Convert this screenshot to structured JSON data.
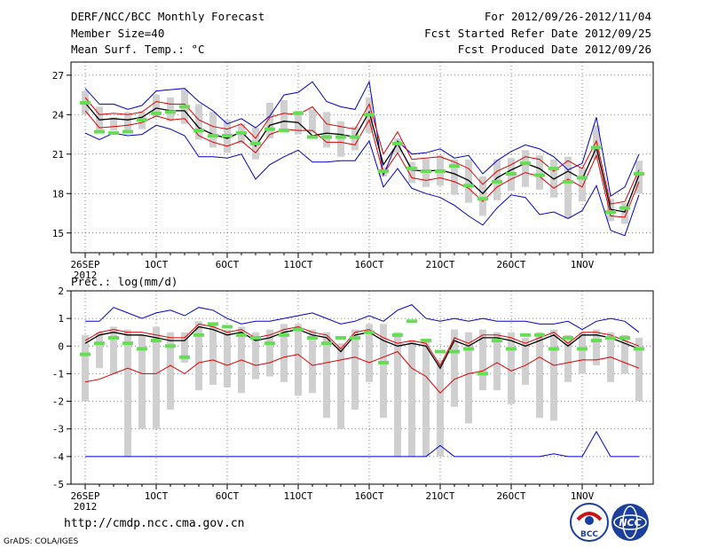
{
  "header": {
    "title": "DERF/NCC/BCC Monthly Forecast",
    "member": "Member Size=40",
    "variable": "Mean Surf. Temp.: °C",
    "period": "For 2012/09/26-2012/11/04",
    "started": "Fcst Started Refer Date 2012/09/25",
    "produced": "Fcst Produced Date 2012/09/26"
  },
  "footer": {
    "url": "http://cmdp.ncc.cma.gov.cn",
    "grads": "GrADS: COLA/IGES",
    "logo_bcc": "BCC",
    "logo_ncc": "NCC"
  },
  "colors": {
    "envelope": "#0000cc",
    "mean": "#000000",
    "spread": "#dd0000",
    "box": "#d0d0d0",
    "observed": "#66dd55"
  },
  "chart_data": [
    {
      "type": "line",
      "title": "Mean Surf. Temp.: °C",
      "x": [
        1,
        2,
        3,
        4,
        5,
        6,
        7,
        8,
        9,
        10,
        11,
        12,
        13,
        14,
        15,
        16,
        17,
        18,
        19,
        20,
        21,
        22,
        23,
        24,
        25,
        26,
        27,
        28,
        29,
        30,
        31,
        32,
        33,
        34,
        35,
        36,
        37,
        38,
        39,
        40
      ],
      "xticks": [
        1,
        6,
        11,
        16,
        21,
        26,
        31,
        36
      ],
      "xticklabels": [
        "26SEP",
        "1OCT",
        "6OCT",
        "11OCT",
        "16OCT",
        "21OCT",
        "26OCT",
        "1NOV"
      ],
      "xsublabel": "2012",
      "xlim": [
        0,
        41
      ],
      "ylim": [
        13.5,
        28
      ],
      "yticks": [
        15,
        18,
        21,
        24,
        27
      ],
      "series": [
        {
          "name": "max",
          "values": [
            26.0,
            24.8,
            24.8,
            24.4,
            24.7,
            25.8,
            25.9,
            26.0,
            25.0,
            24.3,
            23.3,
            23.7,
            23.0,
            23.9,
            25.5,
            25.7,
            26.5,
            25.0,
            24.6,
            24.4,
            26.5,
            19.4,
            22.0,
            21.0,
            21.1,
            21.4,
            20.7,
            20.9,
            19.5,
            20.5,
            21.2,
            21.7,
            21.4,
            20.8,
            19.8,
            20.3,
            23.8,
            17.8,
            18.5,
            21.0
          ]
        },
        {
          "name": "upper",
          "values": [
            25.3,
            24.0,
            24.1,
            24.0,
            24.2,
            25.0,
            24.8,
            24.8,
            23.6,
            23.1,
            22.9,
            23.3,
            22.2,
            23.8,
            24.1,
            24.0,
            24.6,
            23.3,
            23.1,
            22.9,
            24.8,
            21.0,
            22.7,
            20.6,
            20.7,
            20.8,
            20.4,
            19.9,
            18.7,
            19.7,
            20.2,
            20.8,
            20.6,
            19.7,
            20.5,
            19.9,
            22.0,
            17.2,
            17.4,
            19.8
          ]
        },
        {
          "name": "mean",
          "values": [
            24.9,
            23.6,
            23.7,
            23.6,
            23.8,
            24.5,
            24.3,
            24.3,
            23.0,
            22.5,
            22.2,
            22.7,
            21.6,
            23.2,
            23.5,
            23.4,
            22.4,
            22.6,
            22.5,
            22.3,
            24.2,
            20.2,
            21.8,
            19.8,
            19.7,
            19.8,
            19.5,
            19.0,
            18.0,
            19.2,
            19.8,
            20.3,
            19.9,
            19.1,
            19.7,
            19.1,
            21.5,
            16.8,
            16.6,
            19.4
          ]
        },
        {
          "name": "lower",
          "values": [
            24.3,
            23.0,
            23.1,
            23.2,
            23.4,
            23.9,
            23.6,
            23.7,
            22.4,
            21.9,
            21.6,
            22.0,
            21.1,
            22.5,
            22.9,
            22.8,
            22.8,
            21.9,
            21.9,
            21.7,
            23.6,
            19.5,
            21.1,
            19.2,
            19.0,
            19.2,
            18.9,
            18.4,
            17.4,
            18.5,
            19.1,
            19.6,
            19.3,
            18.4,
            19.1,
            18.5,
            20.9,
            16.3,
            16.2,
            18.9
          ]
        },
        {
          "name": "min",
          "values": [
            22.6,
            22.1,
            22.6,
            22.4,
            22.5,
            23.2,
            22.9,
            22.4,
            20.8,
            20.8,
            20.7,
            21.0,
            19.1,
            20.2,
            20.8,
            21.3,
            20.4,
            20.4,
            20.5,
            20.5,
            22.0,
            18.5,
            19.9,
            18.4,
            18.0,
            17.7,
            17.1,
            16.3,
            15.6,
            16.9,
            17.9,
            17.7,
            16.4,
            16.6,
            16.1,
            16.7,
            18.6,
            15.2,
            14.8,
            17.9
          ]
        }
      ],
      "box": {
        "high": [
          25.8,
          24.6,
          23.8,
          24.2,
          24.2,
          25.5,
          25.3,
          25.9,
          24.8,
          24.2,
          23.6,
          23.3,
          23.0,
          24.9,
          25.1,
          24.3,
          24.4,
          24.2,
          23.5,
          23.1,
          25.3,
          20.0,
          22.2,
          20.4,
          20.6,
          20.9,
          20.6,
          20.6,
          19.3,
          20.6,
          20.7,
          21.3,
          20.9,
          20.6,
          20.8,
          20.0,
          23.2,
          17.6,
          17.3,
          20.5
        ],
        "low": [
          24.0,
          22.7,
          22.8,
          22.6,
          22.9,
          23.8,
          23.5,
          23.3,
          22.1,
          21.5,
          21.1,
          21.8,
          20.6,
          22.2,
          22.9,
          22.5,
          22.6,
          21.5,
          20.8,
          21.3,
          22.6,
          19.3,
          21.1,
          18.8,
          18.5,
          18.6,
          17.9,
          17.3,
          16.3,
          17.5,
          18.2,
          18.5,
          18.3,
          17.7,
          16.1,
          17.4,
          20.6,
          15.9,
          15.7,
          18.0
        ]
      },
      "observed": [
        24.9,
        22.7,
        22.6,
        22.7,
        23.6,
        24.1,
        24.2,
        24.6,
        22.8,
        22.4,
        22.4,
        22.6,
        21.8,
        22.9,
        22.8,
        24.1,
        22.3,
        22.3,
        22.3,
        22.3,
        24.0,
        19.7,
        21.8,
        19.9,
        19.7,
        19.7,
        20.1,
        18.6,
        17.6,
        18.9,
        19.5,
        20.3,
        19.4,
        19.9,
        18.9,
        19.2,
        21.5,
        16.6,
        16.9,
        19.5
      ]
    },
    {
      "type": "line",
      "title": "Prec.: log(mm/d)",
      "x": [
        1,
        2,
        3,
        4,
        5,
        6,
        7,
        8,
        9,
        10,
        11,
        12,
        13,
        14,
        15,
        16,
        17,
        18,
        19,
        20,
        21,
        22,
        23,
        24,
        25,
        26,
        27,
        28,
        29,
        30,
        31,
        32,
        33,
        34,
        35,
        36,
        37,
        38,
        39,
        40
      ],
      "xticks": [
        1,
        6,
        11,
        16,
        21,
        26,
        31,
        36
      ],
      "xticklabels": [
        "26SEP",
        "1OCT",
        "6OCT",
        "11OCT",
        "16OCT",
        "21OCT",
        "26OCT",
        "1NOV"
      ],
      "xsublabel": "2012",
      "xlim": [
        0,
        41
      ],
      "ylim": [
        -5,
        2
      ],
      "yticks": [
        -5,
        -4,
        -3,
        -2,
        -1,
        0,
        1,
        2
      ],
      "series": [
        {
          "name": "max",
          "values": [
            0.9,
            0.9,
            1.4,
            1.2,
            1.0,
            1.2,
            1.3,
            1.1,
            1.4,
            1.3,
            1.0,
            0.8,
            0.9,
            0.9,
            1.0,
            1.1,
            1.2,
            1.0,
            0.8,
            0.9,
            1.1,
            0.9,
            1.3,
            1.5,
            1.0,
            0.9,
            1.0,
            0.9,
            1.0,
            0.9,
            0.9,
            0.9,
            0.8,
            0.8,
            0.9,
            0.6,
            0.9,
            1.0,
            0.9,
            0.5
          ]
        },
        {
          "name": "upper",
          "values": [
            0.2,
            0.5,
            0.6,
            0.5,
            0.5,
            0.4,
            0.3,
            0.3,
            0.8,
            0.7,
            0.5,
            0.6,
            0.3,
            0.4,
            0.6,
            0.7,
            0.5,
            0.4,
            -0.1,
            0.5,
            0.6,
            0.3,
            0.1,
            0.2,
            0.1,
            -0.7,
            0.3,
            0.1,
            0.4,
            0.4,
            0.3,
            0.1,
            0.3,
            0.5,
            0.1,
            0.5,
            0.5,
            0.4,
            0.2,
            0.0
          ]
        },
        {
          "name": "mean",
          "values": [
            0.1,
            0.4,
            0.5,
            0.4,
            0.4,
            0.3,
            0.2,
            0.2,
            0.7,
            0.6,
            0.4,
            0.5,
            0.2,
            0.3,
            0.5,
            0.6,
            0.4,
            0.3,
            -0.2,
            0.4,
            0.5,
            0.2,
            0.0,
            0.1,
            0.0,
            -0.8,
            0.2,
            0.0,
            0.3,
            0.3,
            0.2,
            0.0,
            0.2,
            0.4,
            0.0,
            0.4,
            0.4,
            0.3,
            0.1,
            -0.1
          ]
        },
        {
          "name": "lower",
          "values": [
            -1.3,
            -1.2,
            -1.0,
            -0.8,
            -1.0,
            -1.0,
            -0.7,
            -1.0,
            -0.6,
            -0.5,
            -0.7,
            -0.5,
            -0.7,
            -0.6,
            -0.4,
            -0.3,
            -0.7,
            -0.6,
            -0.5,
            -0.4,
            -0.6,
            -0.4,
            -0.2,
            -0.8,
            -1.1,
            -1.7,
            -1.2,
            -1.0,
            -0.9,
            -0.6,
            -0.9,
            -0.7,
            -0.4,
            -0.7,
            -0.6,
            -0.5,
            -0.5,
            -0.4,
            -0.6,
            -0.8
          ]
        },
        {
          "name": "min",
          "values": [
            -4.0,
            -4.0,
            -4.0,
            -4.0,
            -4.0,
            -4.0,
            -4.0,
            -4.0,
            -4.0,
            -4.0,
            -4.0,
            -4.0,
            -4.0,
            -4.0,
            -4.0,
            -4.0,
            -4.0,
            -4.0,
            -4.0,
            -4.0,
            -4.0,
            -4.0,
            -4.0,
            -4.0,
            -4.0,
            -3.6,
            -4.0,
            -4.0,
            -4.0,
            -4.0,
            -4.0,
            -4.0,
            -4.0,
            -3.9,
            -4.0,
            -4.0,
            -3.1,
            -4.0,
            -4.0,
            -4.0
          ]
        }
      ],
      "box": {
        "high": [
          0.4,
          0.5,
          0.7,
          0.6,
          0.4,
          0.7,
          0.5,
          0.5,
          0.9,
          0.8,
          0.6,
          0.7,
          0.5,
          0.6,
          0.8,
          0.8,
          0.6,
          0.5,
          0.1,
          0.6,
          0.8,
          0.8,
          0.5,
          0.2,
          0.2,
          -0.5,
          0.6,
          0.5,
          0.6,
          0.5,
          0.5,
          0.3,
          0.5,
          0.6,
          0.4,
          0.5,
          0.6,
          0.5,
          0.4,
          0.3
        ],
        "low": [
          -2.0,
          -0.8,
          -1.0,
          -4.0,
          -3.0,
          -3.0,
          -2.3,
          -0.6,
          -1.6,
          -1.4,
          -1.5,
          -1.7,
          -1.2,
          -1.1,
          -1.3,
          -1.8,
          -1.7,
          -2.6,
          -3.0,
          -2.3,
          -1.3,
          -2.6,
          -4.0,
          -4.0,
          -4.0,
          -4.0,
          -2.2,
          -2.8,
          -1.6,
          -1.6,
          -2.1,
          -1.4,
          -2.6,
          -2.7,
          -1.3,
          -1.0,
          -0.7,
          -1.3,
          -1.0,
          -2.0
        ]
      },
      "observed": [
        -0.3,
        0.1,
        0.3,
        0.1,
        -0.1,
        0.2,
        0.0,
        -0.4,
        0.4,
        0.8,
        0.7,
        0.4,
        0.3,
        0.1,
        0.4,
        0.6,
        0.3,
        0.1,
        0.3,
        0.3,
        0.5,
        -0.6,
        0.4,
        0.9,
        0.2,
        -0.2,
        -0.2,
        -0.1,
        -1.0,
        0.2,
        -0.1,
        0.4,
        0.4,
        -0.1,
        0.3,
        -0.1,
        0.2,
        0.3,
        0.3,
        -0.1
      ]
    }
  ]
}
